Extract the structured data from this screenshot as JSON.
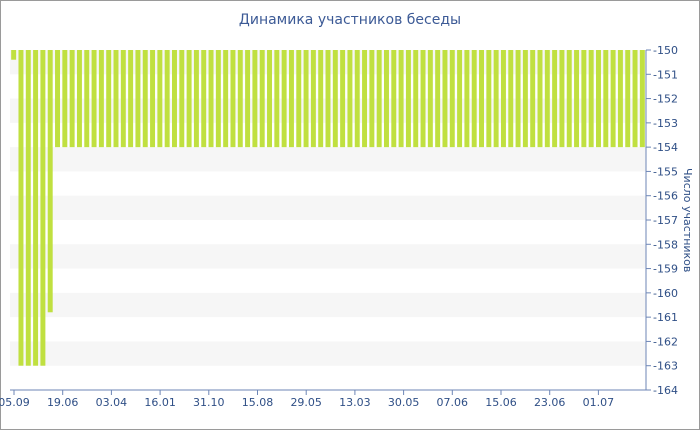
{
  "chart_data": {
    "type": "bar",
    "title": "Динамика участников беседы",
    "ylabel": "Число участников",
    "xlabel": "",
    "y_axis_side": "right",
    "y_inverted": true,
    "ylim": [
      -164,
      -150
    ],
    "y_ticks": [
      -150,
      -151,
      -152,
      -153,
      -154,
      -155,
      -156,
      -157,
      -158,
      -159,
      -160,
      -161,
      -162,
      -163,
      -164
    ],
    "x_tick_labels": [
      "05.09",
      "19.06",
      "03.04",
      "16.01",
      "31.10",
      "15.08",
      "29.05",
      "13.03",
      "30.05",
      "07.06",
      "15.06",
      "23.06",
      "01.07"
    ],
    "bar_color": "#c0e040",
    "grid": "alternating horizontal bands",
    "categories_count": 87,
    "values": [
      -150.4,
      -163,
      -163,
      -163,
      -163,
      -160.8,
      -154,
      -154,
      -154,
      -154,
      -154,
      -154,
      -154,
      -154,
      -154,
      -154,
      -154,
      -154,
      -154,
      -154,
      -154,
      -154,
      -154,
      -154,
      -154,
      -154,
      -154,
      -154,
      -154,
      -154,
      -154,
      -154,
      -154,
      -154,
      -154,
      -154,
      -154,
      -154,
      -154,
      -154,
      -154,
      -154,
      -154,
      -154,
      -154,
      -154,
      -154,
      -154,
      -154,
      -154,
      -154,
      -154,
      -154,
      -154,
      -154,
      -154,
      -154,
      -154,
      -154,
      -154,
      -154,
      -154,
      -154,
      -154,
      -154,
      -154,
      -154,
      -154,
      -154,
      -154,
      -154,
      -154,
      -154,
      -154,
      -154,
      -154,
      -154,
      -154,
      -154,
      -154,
      -154,
      -154,
      -154,
      -154,
      -154,
      -154,
      -154
    ]
  }
}
